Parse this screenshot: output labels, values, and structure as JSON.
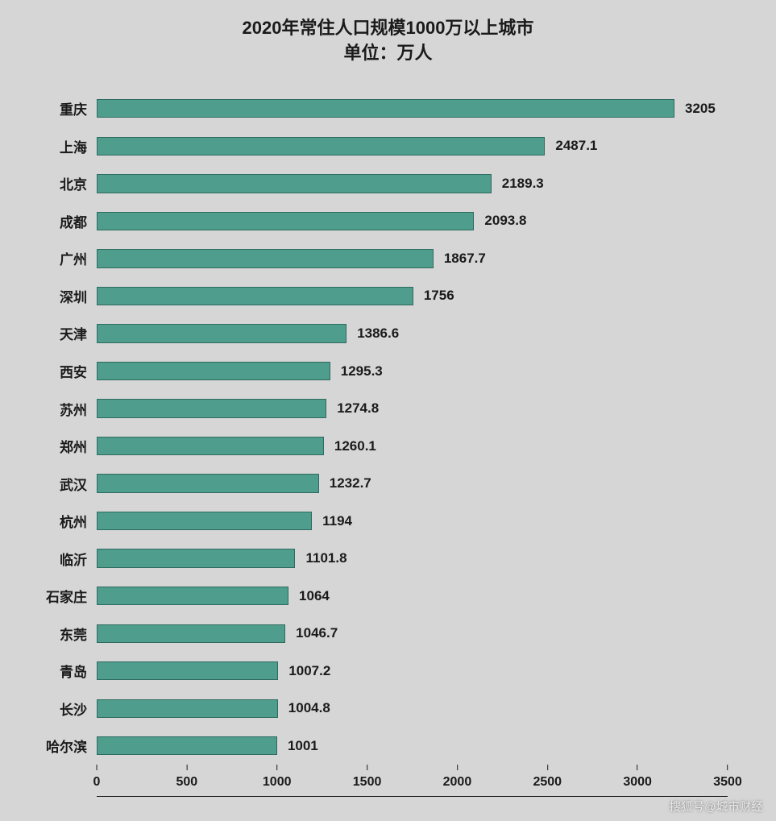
{
  "chart": {
    "type": "bar-horizontal",
    "title": "2020年常住人口规模1000万以上城市",
    "subtitle": "单位：万人",
    "title_fontsize": 22,
    "title_color": "#1a1a1a",
    "background_color": "#d6d6d6",
    "bar_color": "#4f9d8d",
    "bar_border_color": "#2d6b5f",
    "label_fontsize": 17,
    "label_color": "#1a1a1a",
    "axis_fontsize": 16,
    "xlim": [
      0,
      3500
    ],
    "xtick_step": 500,
    "xticks": [
      0,
      500,
      1000,
      1500,
      2000,
      2500,
      3000,
      3500
    ],
    "bar_height_ratio": 0.5,
    "categories": [
      "重庆",
      "上海",
      "北京",
      "成都",
      "广州",
      "深圳",
      "天津",
      "西安",
      "苏州",
      "郑州",
      "武汉",
      "杭州",
      "临沂",
      "石家庄",
      "东莞",
      "青岛",
      "长沙",
      "哈尔滨"
    ],
    "values": [
      3205,
      2487.1,
      2189.3,
      2093.8,
      1867.7,
      1756,
      1386.6,
      1295.3,
      1274.8,
      1260.1,
      1232.7,
      1194,
      1101.8,
      1064,
      1046.7,
      1007.2,
      1004.8,
      1001
    ]
  },
  "watermark": "搜狐号@城市财经"
}
